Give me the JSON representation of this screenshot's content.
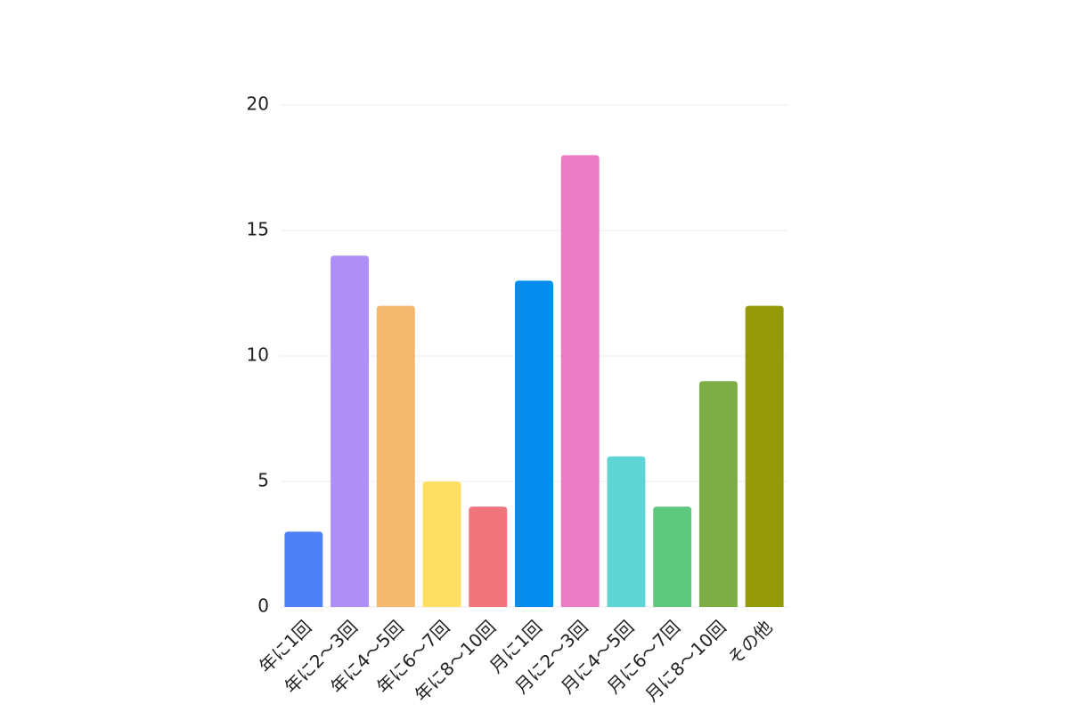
{
  "chart_data": {
    "type": "bar",
    "categories": [
      "年に1回",
      "年に2〜3回",
      "年に4〜5回",
      "年に6〜7回",
      "年に8〜10回",
      "月に1回",
      "月に2〜3回",
      "月に4〜5回",
      "月に6〜7回",
      "月に8〜10回",
      "その他"
    ],
    "values": [
      3,
      14,
      12,
      5,
      4,
      13,
      18,
      6,
      4,
      9,
      12
    ],
    "colors": [
      "#4e80f7",
      "#ae8ff5",
      "#f3b76e",
      "#fedf62",
      "#ef747c",
      "#058ded",
      "#ea7bc4",
      "#5dd5d4",
      "#5ec87f",
      "#7dae46",
      "#949a0a"
    ],
    "ylim": [
      0,
      20
    ],
    "yticks": [
      0,
      5,
      10,
      15,
      20
    ],
    "grid": true
  }
}
